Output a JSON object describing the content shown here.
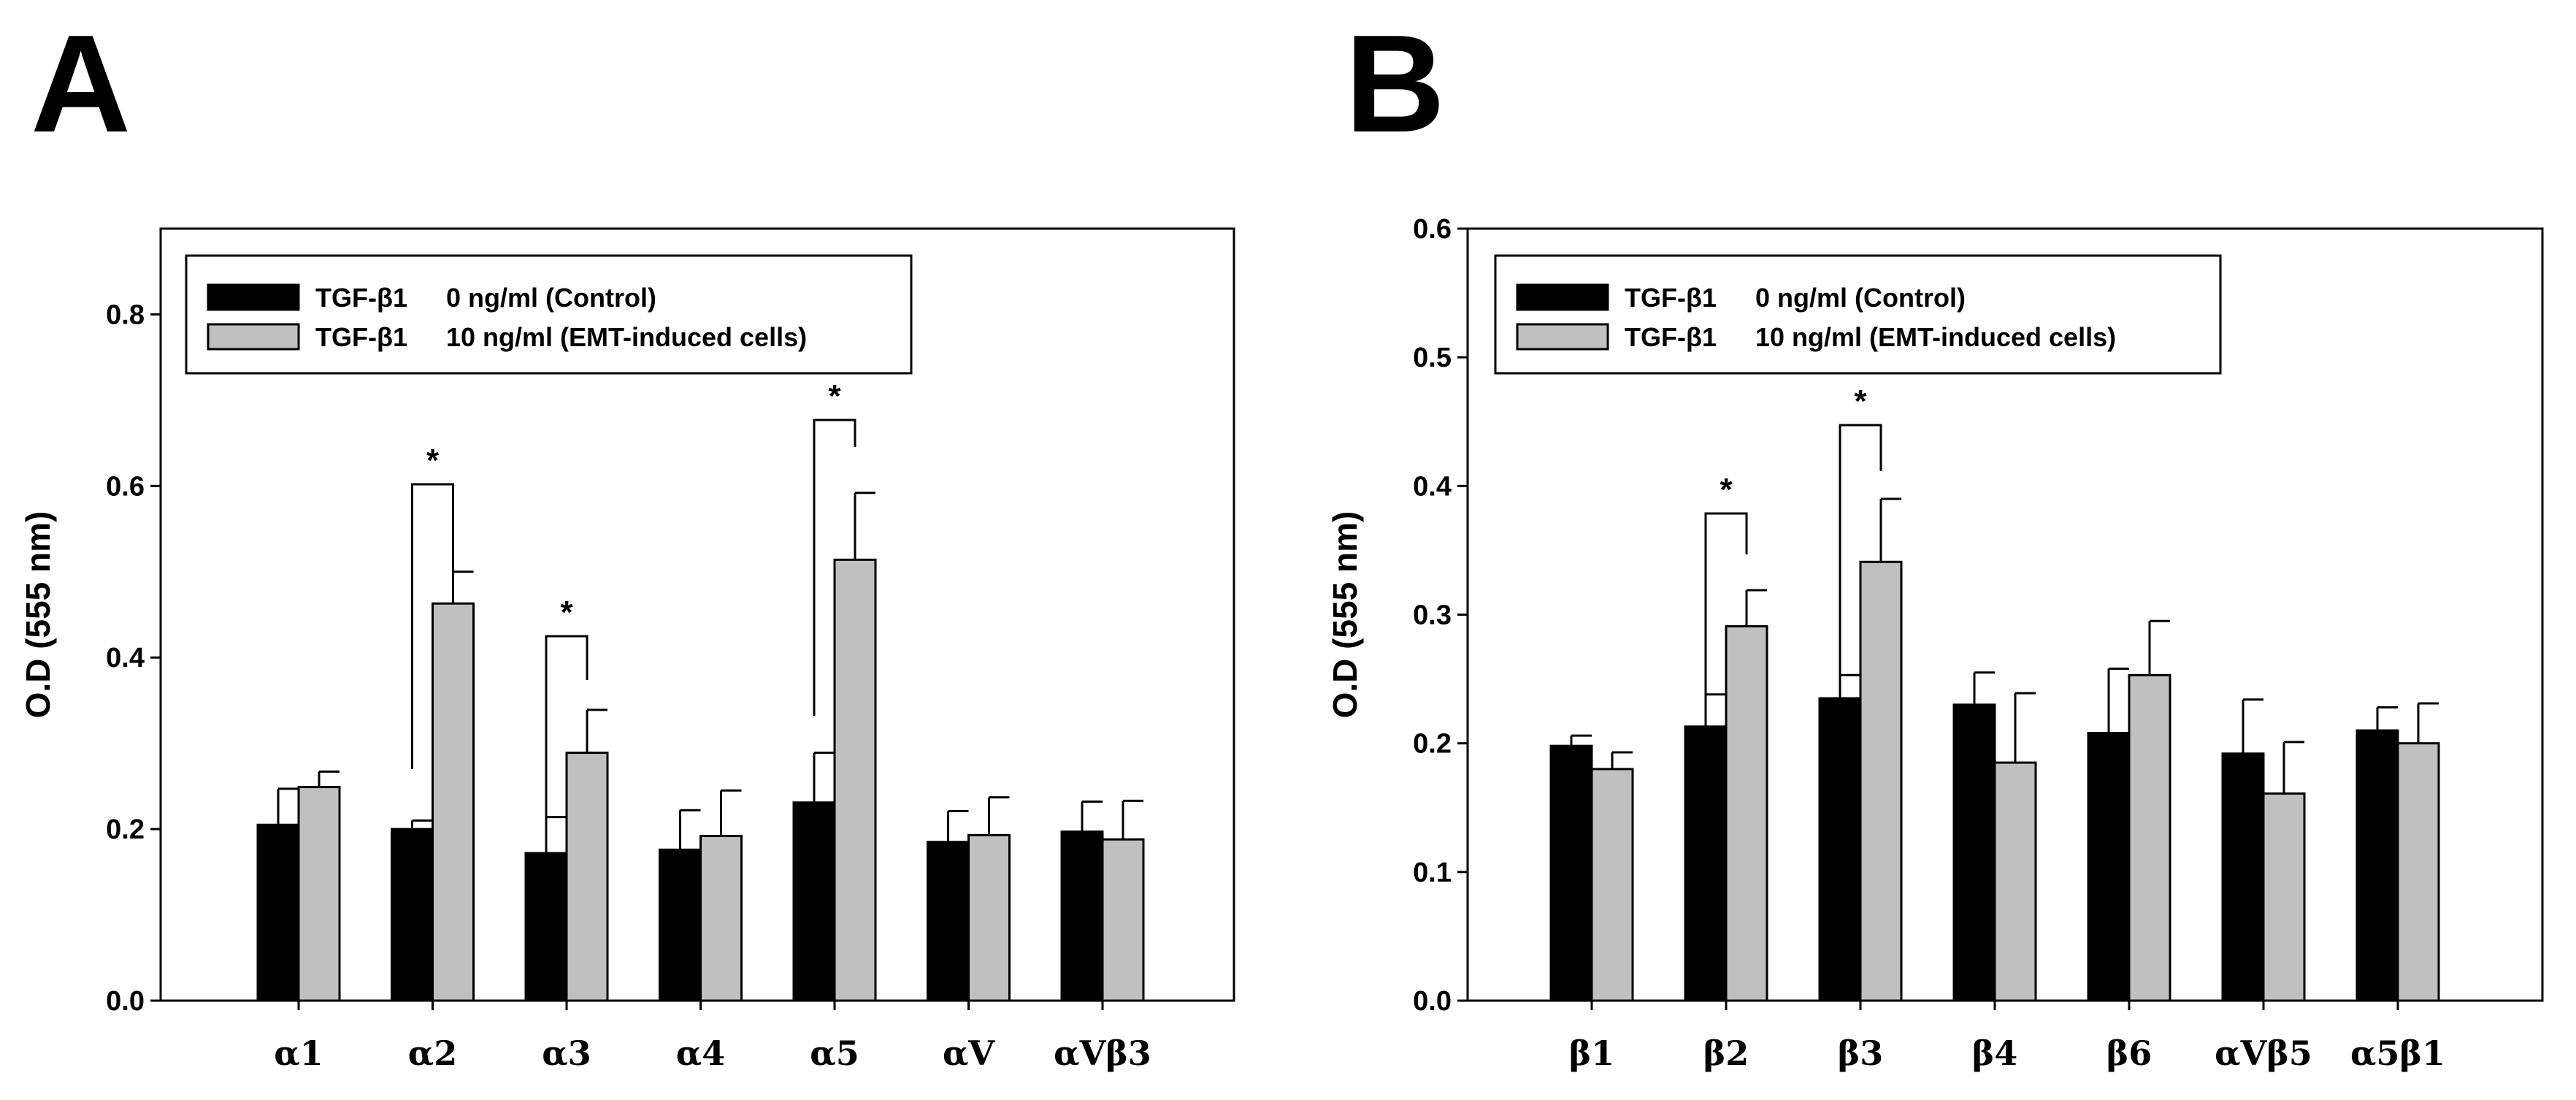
{
  "chart_data": [
    {
      "panel": "A",
      "type": "bar",
      "ylabel": "O.D (555 nm)",
      "xlabel": "",
      "ylim": [
        0,
        0.9
      ],
      "yticks": [
        "0.0",
        "0.2",
        "0.4",
        "0.6",
        "0.8"
      ],
      "categories": [
        "α1",
        "α2",
        "α3",
        "α4",
        "α5",
        "αV",
        "αVβ3"
      ],
      "series": [
        {
          "name": "TGF-β1",
          "dose": "0 ng/ml (Control)",
          "color": "#000000",
          "values": [
            0.205,
            0.2,
            0.172,
            0.176,
            0.231,
            0.185,
            0.197
          ],
          "errors": [
            0.042,
            0.01,
            0.042,
            0.046,
            0.058,
            0.036,
            0.035
          ]
        },
        {
          "name": "TGF-β1",
          "dose": "10 ng/ml (EMT-induced cells)",
          "color": "#c0c0c0",
          "values": [
            0.249,
            0.463,
            0.289,
            0.192,
            0.514,
            0.193,
            0.188
          ],
          "errors": [
            0.018,
            0.037,
            0.05,
            0.053,
            0.078,
            0.044,
            0.045
          ]
        }
      ],
      "significance": [
        {
          "category": "α2",
          "label": "*"
        },
        {
          "category": "α3",
          "label": "*"
        },
        {
          "category": "α5",
          "label": "*"
        }
      ]
    },
    {
      "panel": "B",
      "type": "bar",
      "ylabel": "O.D (555 nm)",
      "xlabel": "",
      "ylim": [
        0,
        0.6
      ],
      "yticks": [
        "0.0",
        "0.1",
        "0.2",
        "0.3",
        "0.4",
        "0.5",
        "0.6"
      ],
      "categories": [
        "β1",
        "β2",
        "β3",
        "β4",
        "β6",
        "αVβ5",
        "α5β1"
      ],
      "series": [
        {
          "name": "TGF-β1",
          "dose": "0 ng/ml (Control)",
          "color": "#000000",
          "values": [
            0.198,
            0.213,
            0.235,
            0.23,
            0.208,
            0.192,
            0.21
          ],
          "errors": [
            0.008,
            0.025,
            0.018,
            0.025,
            0.05,
            0.042,
            0.018
          ]
        },
        {
          "name": "TGF-β1",
          "dose": "10 ng/ml (EMT-induced cells)",
          "color": "#c0c0c0",
          "values": [
            0.18,
            0.291,
            0.341,
            0.185,
            0.253,
            0.161,
            0.2
          ],
          "errors": [
            0.013,
            0.028,
            0.049,
            0.054,
            0.042,
            0.04,
            0.031
          ]
        }
      ],
      "significance": [
        {
          "category": "β2",
          "label": "*"
        },
        {
          "category": "β3",
          "label": "*"
        }
      ]
    }
  ]
}
